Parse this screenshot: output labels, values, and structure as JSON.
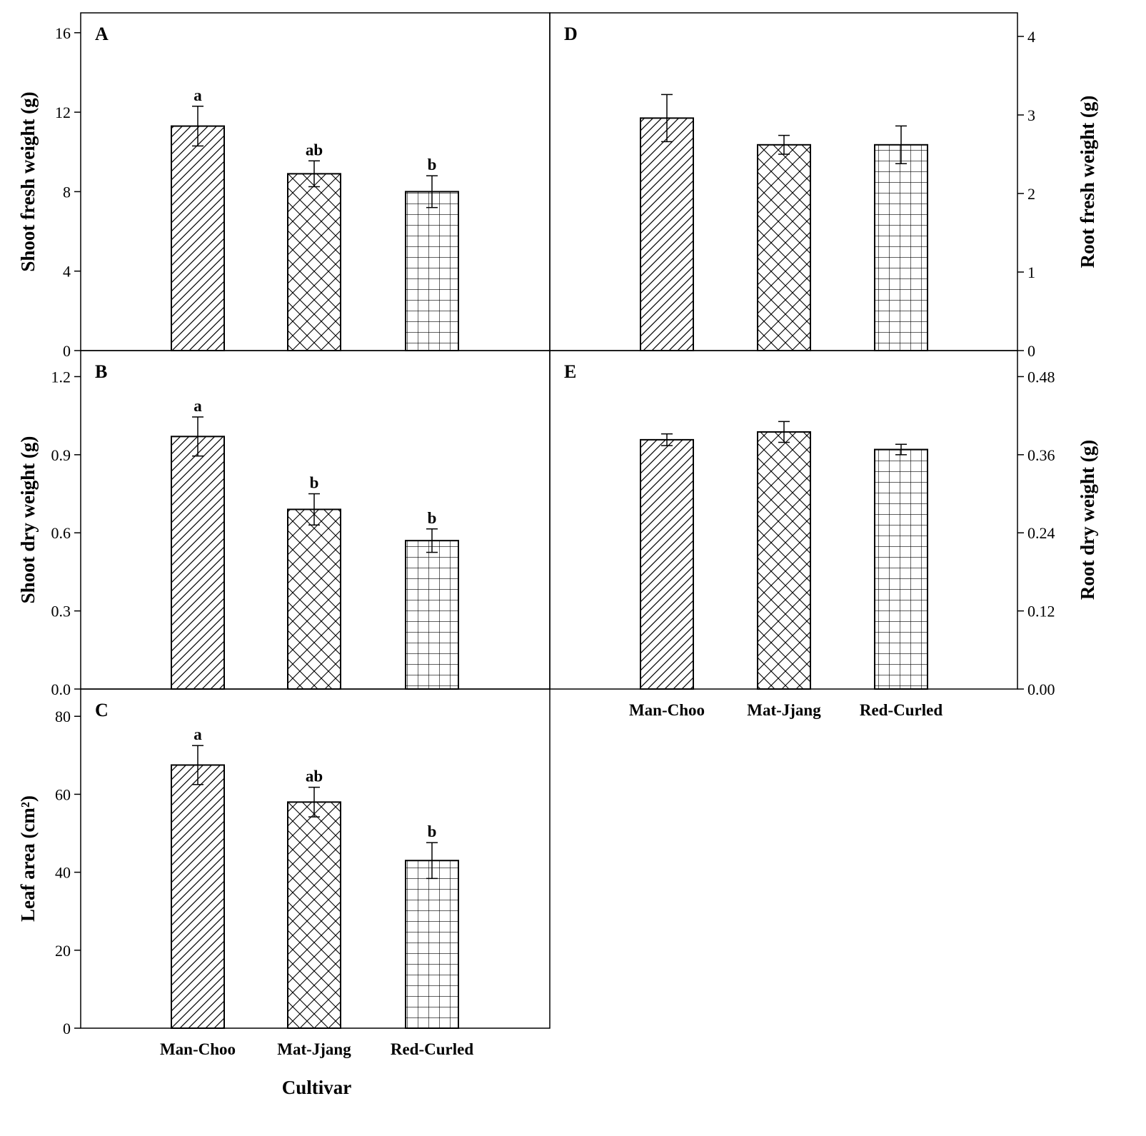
{
  "chart_data": [
    {
      "id": "A",
      "type": "bar",
      "panel_letter": "A",
      "categories": [
        "Man-Choo",
        "Mat-Jjang",
        "Red-Curled"
      ],
      "values": [
        11.3,
        8.9,
        8.0
      ],
      "errors": [
        1.0,
        0.65,
        0.8
      ],
      "significance": [
        "a",
        "ab",
        "b"
      ],
      "ylabel": "Shoot fresh weight (g)",
      "ylim": [
        0,
        17
      ],
      "yticks": [
        "0",
        "4",
        "8",
        "12",
        "16"
      ],
      "ytick_values": [
        0,
        4,
        8,
        12,
        16
      ],
      "y_axis_side": "left",
      "patterns": [
        "diagonal",
        "crosshatch",
        "grid"
      ]
    },
    {
      "id": "B",
      "type": "bar",
      "panel_letter": "B",
      "categories": [
        "Man-Choo",
        "Mat-Jjang",
        "Red-Curled"
      ],
      "values": [
        0.97,
        0.69,
        0.57
      ],
      "errors": [
        0.075,
        0.06,
        0.045
      ],
      "significance": [
        "a",
        "b",
        "b"
      ],
      "ylabel": "Shoot dry weight (g)",
      "ylim": [
        0,
        1.3
      ],
      "yticks": [
        "0.0",
        "0.3",
        "0.6",
        "0.9",
        "1.2"
      ],
      "ytick_values": [
        0,
        0.3,
        0.6,
        0.9,
        1.2
      ],
      "y_axis_side": "left",
      "patterns": [
        "diagonal",
        "crosshatch",
        "grid"
      ]
    },
    {
      "id": "C",
      "type": "bar",
      "panel_letter": "C",
      "categories": [
        "Man-Choo",
        "Mat-Jjang",
        "Red-Curled"
      ],
      "values": [
        67.5,
        58.0,
        43.0
      ],
      "errors": [
        5.0,
        3.8,
        4.6
      ],
      "significance": [
        "a",
        "ab",
        "b"
      ],
      "ylabel": "Leaf area (cm²)",
      "ylim": [
        0,
        87
      ],
      "yticks": [
        "0",
        "20",
        "40",
        "60",
        "80"
      ],
      "ytick_values": [
        0,
        20,
        40,
        60,
        80
      ],
      "y_axis_side": "left",
      "xlabel": "Cultivar",
      "xtick_labels": [
        "Man-Choo",
        "Mat-Jjang",
        "Red-Curled"
      ],
      "patterns": [
        "diagonal",
        "crosshatch",
        "grid"
      ]
    },
    {
      "id": "D",
      "type": "bar",
      "panel_letter": "D",
      "categories": [
        "Man-Choo",
        "Mat-Jjang",
        "Red-Curled"
      ],
      "values": [
        2.96,
        2.62,
        2.62
      ],
      "errors": [
        0.3,
        0.12,
        0.24
      ],
      "significance": [
        "",
        "",
        ""
      ],
      "ylabel": "Root fresh weight (g)",
      "ylim": [
        0,
        4.3
      ],
      "yticks": [
        "0",
        "1",
        "2",
        "3",
        "4"
      ],
      "ytick_values": [
        0,
        1,
        2,
        3,
        4
      ],
      "y_axis_side": "right",
      "patterns": [
        "diagonal",
        "crosshatch",
        "grid"
      ]
    },
    {
      "id": "E",
      "type": "bar",
      "panel_letter": "E",
      "categories": [
        "Man-Choo",
        "Mat-Jjang",
        "Red-Curled"
      ],
      "values": [
        0.383,
        0.395,
        0.368
      ],
      "errors": [
        0.009,
        0.016,
        0.008
      ],
      "significance": [
        "",
        "",
        ""
      ],
      "ylabel": "Root dry weight (g)",
      "ylim": [
        0,
        0.52
      ],
      "yticks": [
        "0.00",
        "0.12",
        "0.24",
        "0.36",
        "0.48"
      ],
      "ytick_values": [
        0,
        0.12,
        0.24,
        0.36,
        0.48
      ],
      "y_axis_side": "right",
      "xtick_labels": [
        "Man-Choo",
        "Mat-Jjang",
        "Red-Curled"
      ],
      "patterns": [
        "diagonal",
        "crosshatch",
        "grid"
      ]
    }
  ]
}
